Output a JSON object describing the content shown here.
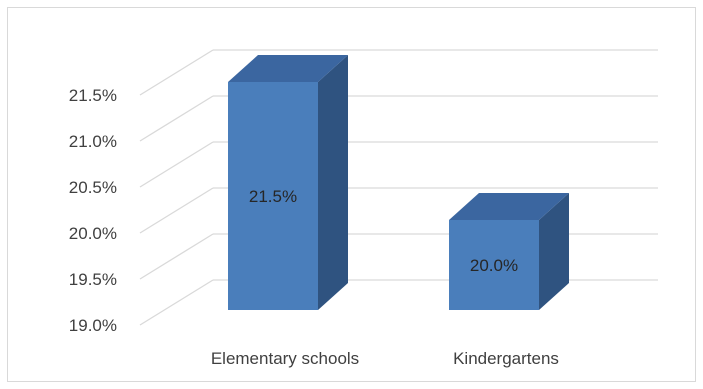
{
  "chart_data": {
    "type": "bar",
    "style": "3d-column",
    "categories": [
      "Elementary schools",
      "Kindergartens"
    ],
    "values": [
      21.5,
      20.0
    ],
    "data_labels": [
      "21.5%",
      "20.0%"
    ],
    "ylim": [
      19.0,
      21.5
    ],
    "y_ticks": [
      19.0,
      19.5,
      20.0,
      20.5,
      21.0,
      21.5
    ],
    "y_tick_labels": [
      "19.0%",
      "19.5%",
      "20.0%",
      "20.5%",
      "21.0%",
      "21.5%"
    ],
    "grid": true,
    "legend": "none",
    "title": "",
    "xlabel": "",
    "ylabel": "",
    "colors": {
      "bar_front": "#4a7ebb",
      "bar_top": "#3b66a0",
      "bar_side": "#2f5380",
      "gridline": "#d9d9d9"
    }
  }
}
